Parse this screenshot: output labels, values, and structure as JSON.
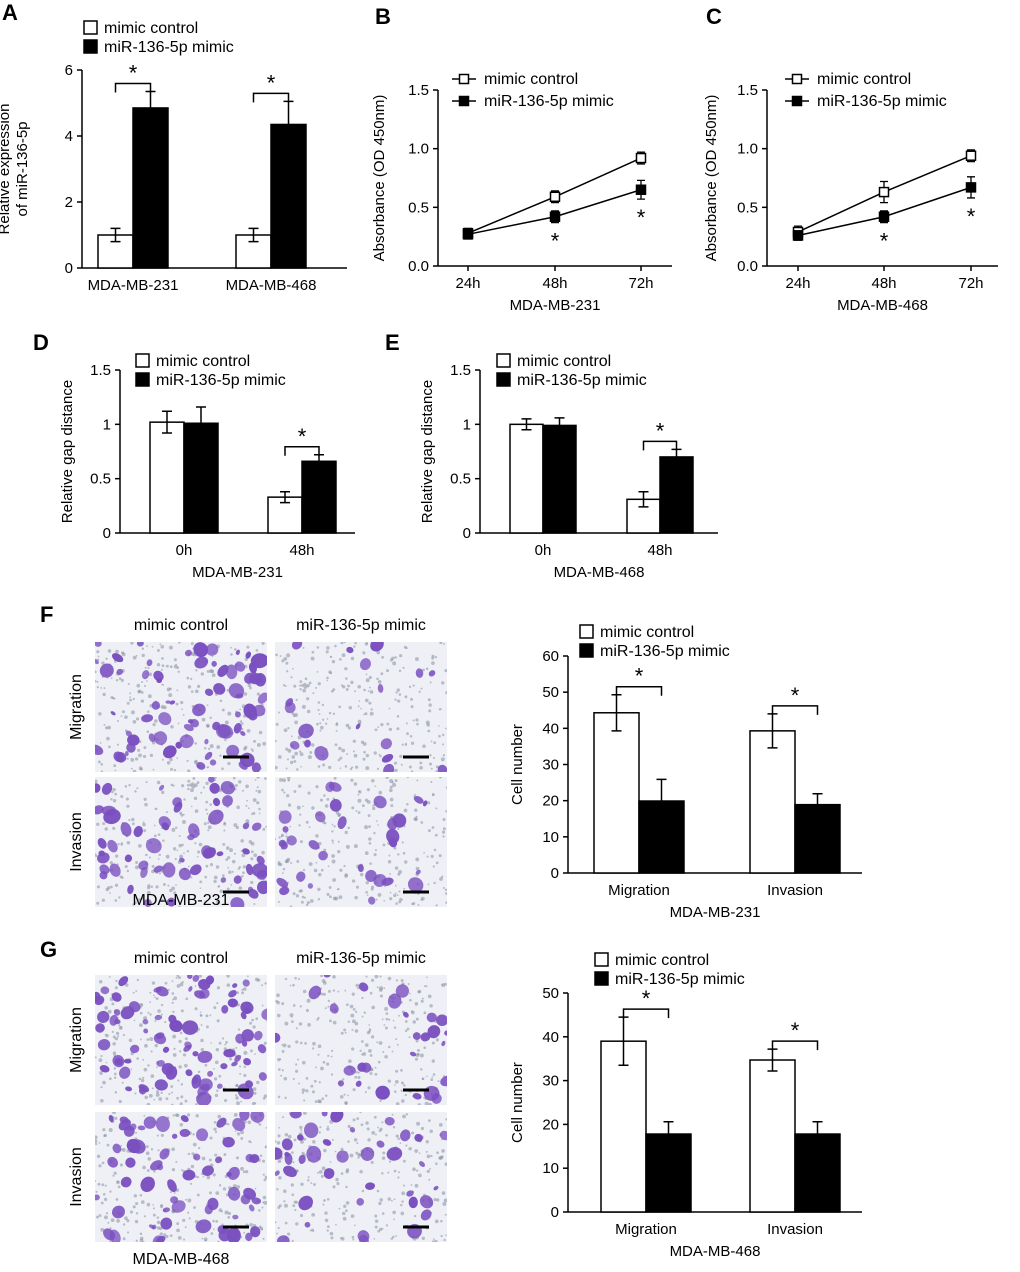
{
  "colors": {
    "control_fill": "#ffffff",
    "mimic_fill": "#000000",
    "stain": "#7a4fc0"
  },
  "icons": {
    "scale_bar": "scale-bar-icon"
  },
  "chart_data": [
    {
      "id": "A",
      "panel_label": "A",
      "type": "bar",
      "categories": [
        "MDA-MB-231",
        "MDA-MB-468"
      ],
      "series": [
        {
          "name": "mimic control",
          "values": [
            1.0,
            1.0
          ],
          "errors": [
            0.2,
            0.2
          ]
        },
        {
          "name": "miR-136-5p mimic",
          "values": [
            4.85,
            4.35
          ],
          "errors": [
            0.5,
            0.7
          ]
        }
      ],
      "ylabel_line1": "Relative expression",
      "ylabel_line2": "of miR-136-5p",
      "xlabel": "",
      "ylim": [
        0,
        6
      ],
      "yticks": [
        "0",
        "2",
        "4",
        "6"
      ],
      "significance": "*",
      "legend": "top"
    },
    {
      "id": "B",
      "panel_label": "B",
      "type": "line",
      "x": [
        "24h",
        "48h",
        "72h"
      ],
      "series": [
        {
          "name": "mimic control",
          "values": [
            0.28,
            0.59,
            0.92
          ],
          "errors": [
            0.04,
            0.05,
            0.05
          ]
        },
        {
          "name": "miR-136-5p mimic",
          "values": [
            0.27,
            0.42,
            0.65
          ],
          "errors": [
            0.04,
            0.05,
            0.08
          ]
        }
      ],
      "ylabel": "Absorbance (OD 450nm)",
      "xlabel": "MDA-MB-231",
      "ylim": [
        0,
        1.5
      ],
      "yticks": [
        "0.0",
        "0.5",
        "1.0",
        "1.5"
      ],
      "significance": "*",
      "legend": "top-left"
    },
    {
      "id": "C",
      "panel_label": "C",
      "type": "line",
      "x": [
        "24h",
        "48h",
        "72h"
      ],
      "series": [
        {
          "name": "mimic control",
          "values": [
            0.29,
            0.63,
            0.94
          ],
          "errors": [
            0.05,
            0.09,
            0.05
          ]
        },
        {
          "name": "miR-136-5p mimic",
          "values": [
            0.26,
            0.42,
            0.67
          ],
          "errors": [
            0.04,
            0.05,
            0.09
          ]
        }
      ],
      "ylabel": "Absorbance (OD 450nm)",
      "xlabel": "MDA-MB-468",
      "ylim": [
        0,
        1.5
      ],
      "yticks": [
        "0.0",
        "0.5",
        "1.0",
        "1.5"
      ],
      "significance": "*",
      "legend": "top-left"
    },
    {
      "id": "D",
      "panel_label": "D",
      "type": "bar",
      "categories": [
        "0h",
        "48h"
      ],
      "series": [
        {
          "name": "mimic control",
          "values": [
            1.02,
            0.33
          ],
          "errors": [
            0.1,
            0.05
          ]
        },
        {
          "name": "miR-136-5p mimic",
          "values": [
            1.01,
            0.66
          ],
          "errors": [
            0.15,
            0.06
          ]
        }
      ],
      "ylabel": "Relative gap distance",
      "xlabel": "MDA-MB-231",
      "ylim": [
        0,
        1.5
      ],
      "yticks": [
        "0",
        "0.5",
        "1",
        "1.5"
      ],
      "significance": "*",
      "legend": "top"
    },
    {
      "id": "E",
      "panel_label": "E",
      "type": "bar",
      "categories": [
        "0h",
        "48h"
      ],
      "series": [
        {
          "name": "mimic control",
          "values": [
            1.0,
            0.31
          ],
          "errors": [
            0.05,
            0.07
          ]
        },
        {
          "name": "miR-136-5p mimic",
          "values": [
            0.99,
            0.7
          ],
          "errors": [
            0.07,
            0.07
          ]
        }
      ],
      "ylabel": "Relative gap distance",
      "xlabel": "MDA-MB-468",
      "ylim": [
        0,
        1.5
      ],
      "yticks": [
        "0",
        "0.5",
        "1",
        "1.5"
      ],
      "significance": "*",
      "legend": "top"
    },
    {
      "id": "F",
      "panel_label": "",
      "type": "bar",
      "categories": [
        "Migration",
        "Invasion"
      ],
      "series": [
        {
          "name": "mimic control",
          "values": [
            44.3,
            39.3
          ],
          "errors": [
            5.0,
            4.7
          ]
        },
        {
          "name": "miR-136-5p mimic",
          "values": [
            19.9,
            18.9
          ],
          "errors": [
            6.0,
            3.0
          ]
        }
      ],
      "ylabel": "Cell number",
      "xlabel": "MDA-MB-231",
      "ylim": [
        0,
        60
      ],
      "yticks": [
        "0",
        "10",
        "20",
        "30",
        "40",
        "50",
        "60"
      ],
      "significance": "*",
      "legend": "top"
    },
    {
      "id": "G",
      "panel_label": "",
      "type": "bar",
      "categories": [
        "Migration",
        "Invasion"
      ],
      "series": [
        {
          "name": "mimic control",
          "values": [
            39.0,
            34.7
          ],
          "errors": [
            5.5,
            2.5
          ]
        },
        {
          "name": "miR-136-5p mimic",
          "values": [
            17.8,
            17.8
          ],
          "errors": [
            2.8,
            2.8
          ]
        }
      ],
      "ylabel": "Cell number",
      "xlabel": "MDA-MB-468",
      "ylim": [
        0,
        50
      ],
      "yticks": [
        "0",
        "10",
        "20",
        "30",
        "40",
        "50"
      ],
      "significance": "*",
      "legend": "top"
    }
  ],
  "micrographs": [
    {
      "id": "F",
      "panel_label": "F",
      "cell_line": "MDA-MB-231",
      "columns": [
        "mimic control",
        "miR-136-5p mimic"
      ],
      "rows": [
        "Migration",
        "Invasion"
      ]
    },
    {
      "id": "G",
      "panel_label": "G",
      "cell_line": "MDA-MB-468",
      "columns": [
        "mimic control",
        "miR-136-5p mimic"
      ],
      "rows": [
        "Migration",
        "Invasion"
      ]
    }
  ]
}
